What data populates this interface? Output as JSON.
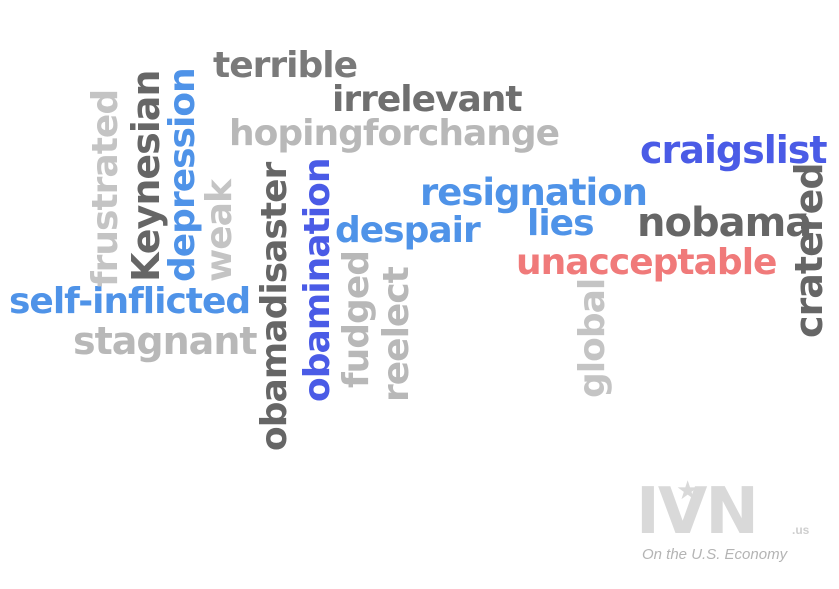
{
  "words": [
    {
      "text": "terrible",
      "color": "#7a7a7a",
      "orientation": "horizontal"
    },
    {
      "text": "irrelevant",
      "color": "#6f6f6f",
      "orientation": "horizontal"
    },
    {
      "text": "hopingforchange",
      "color": "#b8b8b8",
      "orientation": "horizontal"
    },
    {
      "text": "craigslist",
      "color": "#4a5be6",
      "orientation": "horizontal"
    },
    {
      "text": "resignation",
      "color": "#4f93e8",
      "orientation": "horizontal"
    },
    {
      "text": "despair",
      "color": "#4f93e8",
      "orientation": "horizontal"
    },
    {
      "text": "lies",
      "color": "#4f93e8",
      "orientation": "horizontal"
    },
    {
      "text": "nobama",
      "color": "#666666",
      "orientation": "horizontal"
    },
    {
      "text": "unacceptable",
      "color": "#f07a7a",
      "orientation": "horizontal"
    },
    {
      "text": "self-inflicted",
      "color": "#4f93e8",
      "orientation": "horizontal"
    },
    {
      "text": "stagnant",
      "color": "#b8b8b8",
      "orientation": "horizontal"
    },
    {
      "text": "frustrated",
      "color": "#c4c4c4",
      "orientation": "vertical"
    },
    {
      "text": "Keynesian",
      "color": "#666666",
      "orientation": "vertical"
    },
    {
      "text": "depression",
      "color": "#4f93e8",
      "orientation": "vertical"
    },
    {
      "text": "weak",
      "color": "#c4c4c4",
      "orientation": "vertical"
    },
    {
      "text": "obamadisaster",
      "color": "#666666",
      "orientation": "vertical"
    },
    {
      "text": "obamination",
      "color": "#4a5be6",
      "orientation": "vertical"
    },
    {
      "text": "fudged",
      "color": "#b8b8b8",
      "orientation": "vertical"
    },
    {
      "text": "reelect",
      "color": "#b8b8b8",
      "orientation": "vertical"
    },
    {
      "text": "global",
      "color": "#c4c4c4",
      "orientation": "vertical"
    },
    {
      "text": "cratered",
      "color": "#666666",
      "orientation": "vertical"
    }
  ],
  "logo": {
    "mark": "IVN",
    "tld": ".us",
    "tagline": "On the U.S. Economy",
    "color": "#d9d9d9"
  }
}
